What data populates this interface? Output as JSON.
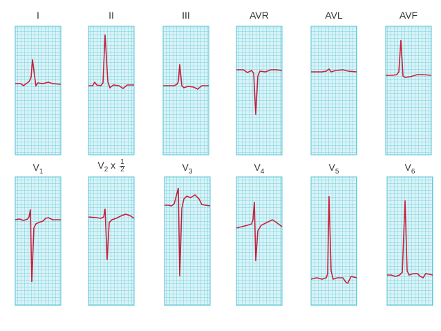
{
  "colors": {
    "background": "#ffffff",
    "grid_fill": "#d9f3f7",
    "grid_line": "#53c3d4",
    "trace": "#c8203c",
    "label_text": "#333333"
  },
  "leads": [
    {
      "id": "I",
      "label": "I"
    },
    {
      "id": "II",
      "label": "II"
    },
    {
      "id": "III",
      "label": "III"
    },
    {
      "id": "AVR",
      "label": "AVR"
    },
    {
      "id": "AVL",
      "label": "AVL"
    },
    {
      "id": "AVF",
      "label": "AVF"
    },
    {
      "id": "V1",
      "label": "V",
      "sub": "1"
    },
    {
      "id": "V2",
      "label": "V",
      "sub": "2",
      "suffix": "x",
      "frac_num": "1",
      "frac_den": "2"
    },
    {
      "id": "V3",
      "label": "V",
      "sub": "3"
    },
    {
      "id": "V4",
      "label": "V",
      "sub": "4"
    },
    {
      "id": "V5",
      "label": "V",
      "sub": "5"
    },
    {
      "id": "V6",
      "label": "V",
      "sub": "6"
    }
  ]
}
